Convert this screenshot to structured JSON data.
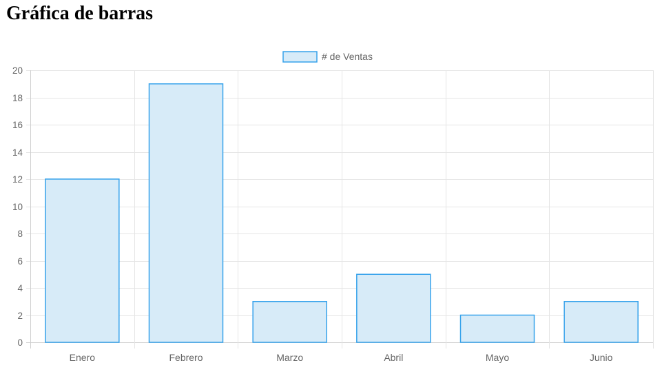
{
  "page": {
    "title": "Gráfica de barras"
  },
  "chart_data": {
    "type": "bar",
    "categories": [
      "Enero",
      "Febrero",
      "Marzo",
      "Abril",
      "Mayo",
      "Junio"
    ],
    "series": [
      {
        "name": "# de Ventas",
        "values": [
          12,
          19,
          3,
          5,
          2,
          3
        ]
      }
    ],
    "title": "",
    "xlabel": "",
    "ylabel": "",
    "ylim": [
      0,
      20
    ],
    "yticks": [
      "0",
      "2",
      "4",
      "6",
      "8",
      "10",
      "12",
      "14",
      "16",
      "18",
      "20"
    ],
    "grid": true,
    "legend_position": "top-center",
    "colors": {
      "bar_fill": "#d7ebf8",
      "bar_border": "#36a2eb",
      "grid": "#e5e5e5",
      "axis": "#cfcfcf",
      "tick_text": "#666666"
    }
  }
}
